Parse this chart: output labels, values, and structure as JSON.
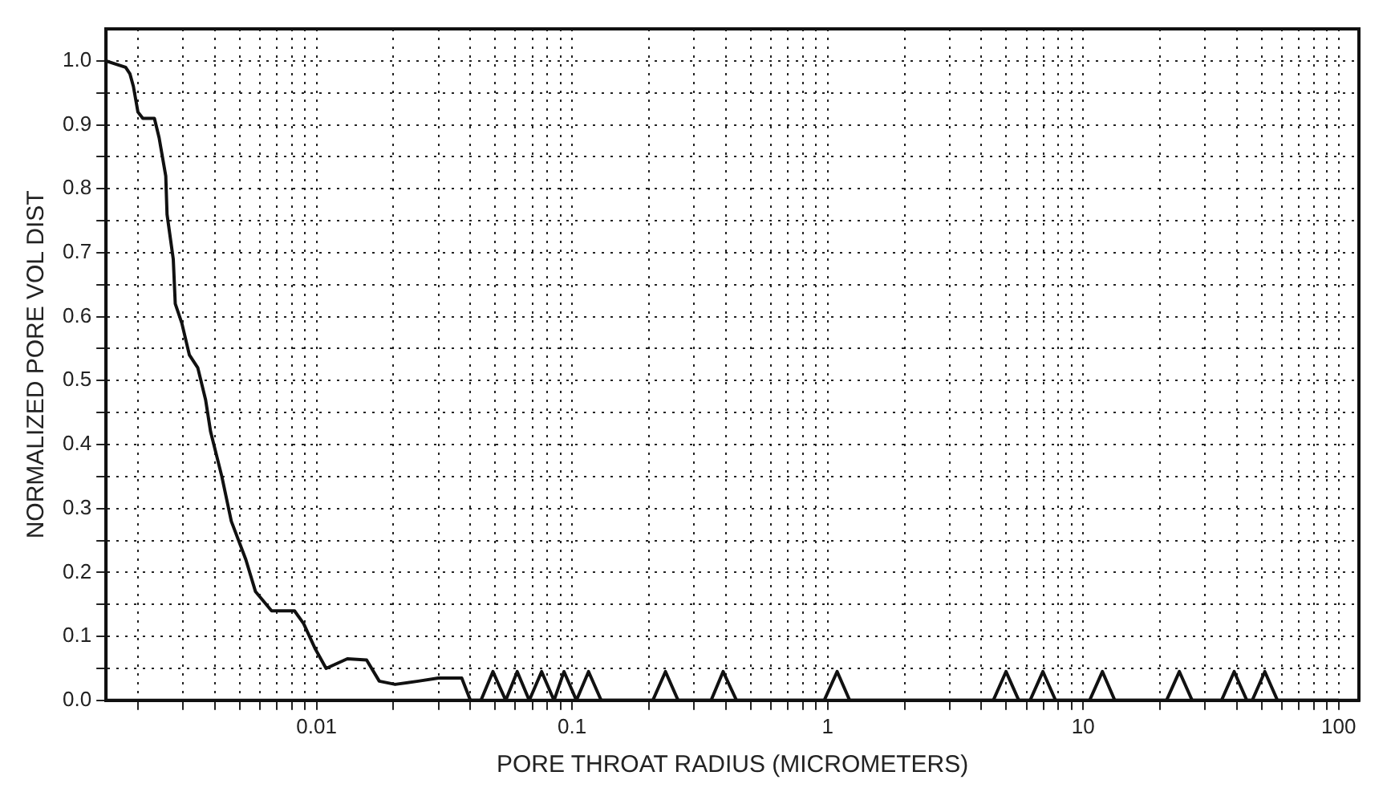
{
  "chart_data": {
    "type": "line",
    "xlabel": "PORE THROAT RADIUS (MICROMETERS)",
    "ylabel": "NORMALIZED PORE VOL DIST",
    "log": "x",
    "grid": true,
    "marker": "none",
    "line_style": "solid",
    "legend": false,
    "xlim": [
      0.0015,
      120
    ],
    "ylim": [
      0,
      1.05
    ],
    "xticks": [
      {
        "value": 0.002,
        "label": null
      },
      {
        "value": 0.003,
        "label": null
      },
      {
        "value": 0.004,
        "label": null
      },
      {
        "value": 0.005,
        "label": null
      },
      {
        "value": 0.006,
        "label": null
      },
      {
        "value": 0.007,
        "label": null
      },
      {
        "value": 0.008,
        "label": null
      },
      {
        "value": 0.009,
        "label": null
      },
      0.01,
      {
        "value": 0.02,
        "label": null
      },
      {
        "value": 0.03,
        "label": null
      },
      {
        "value": 0.04,
        "label": null
      },
      {
        "value": 0.05,
        "label": null
      },
      {
        "value": 0.06,
        "label": null
      },
      {
        "value": 0.07,
        "label": null
      },
      {
        "value": 0.08,
        "label": null
      },
      {
        "value": 0.09,
        "label": null
      },
      0.1,
      {
        "value": 0.2,
        "label": null
      },
      {
        "value": 0.3,
        "label": null
      },
      {
        "value": 0.4,
        "label": null
      },
      {
        "value": 0.5,
        "label": null
      },
      {
        "value": 0.6,
        "label": null
      },
      {
        "value": 0.7,
        "label": null
      },
      {
        "value": 0.8,
        "label": null
      },
      {
        "value": 0.9,
        "label": null
      },
      1,
      {
        "value": 2,
        "label": null
      },
      {
        "value": 3,
        "label": null
      },
      {
        "value": 4,
        "label": null
      },
      {
        "value": 5,
        "label": null
      },
      {
        "value": 6,
        "label": null
      },
      {
        "value": 7,
        "label": null
      },
      {
        "value": 8,
        "label": null
      },
      {
        "value": 9,
        "label": null
      },
      10,
      {
        "value": 20,
        "label": null
      },
      {
        "value": 30,
        "label": null
      },
      {
        "value": 40,
        "label": null
      },
      {
        "value": 50,
        "label": null
      },
      {
        "value": 60,
        "label": null
      },
      {
        "value": 70,
        "label": null
      },
      {
        "value": 80,
        "label": null
      },
      {
        "value": 90,
        "label": null
      },
      100
    ],
    "yticks": [
      {
        "value": 0,
        "label": "0.0"
      },
      {
        "value": 0.05,
        "label": null
      },
      {
        "value": 0.1,
        "label": "0.1"
      },
      {
        "value": 0.15,
        "label": null
      },
      {
        "value": 0.2,
        "label": "0.2"
      },
      {
        "value": 0.25,
        "label": null
      },
      {
        "value": 0.3,
        "label": "0.3"
      },
      {
        "value": 0.35,
        "label": null
      },
      {
        "value": 0.4,
        "label": "0.4"
      },
      {
        "value": 0.45,
        "label": null
      },
      {
        "value": 0.5,
        "label": "0.5"
      },
      {
        "value": 0.55,
        "label": null
      },
      {
        "value": 0.6,
        "label": "0.6"
      },
      {
        "value": 0.65,
        "label": null
      },
      {
        "value": 0.7,
        "label": "0.7"
      },
      {
        "value": 0.75,
        "label": null
      },
      {
        "value": 0.8,
        "label": "0.8"
      },
      {
        "value": 0.85,
        "label": null
      },
      {
        "value": 0.9,
        "label": "0.9"
      },
      {
        "value": 0.95,
        "label": null
      },
      {
        "value": 1,
        "label": "1.0"
      }
    ],
    "series": [
      {
        "color": "#111111",
        "x": [
          0.0015,
          0.00179,
          0.00186,
          0.00192,
          0.002,
          0.00209,
          0.00232,
          0.00242,
          0.00257,
          0.0026,
          0.00275,
          0.0028,
          0.00297,
          0.00318,
          0.00343,
          0.00368,
          0.00385,
          0.00426,
          0.00464,
          0.00529,
          0.00577,
          0.00667,
          0.0082,
          0.0089,
          0.0099,
          0.0109,
          0.0132,
          0.0157,
          0.0176,
          0.0203,
          0.025,
          0.03,
          0.037,
          0.04,
          0.044,
          0.049,
          0.055,
          0.061,
          0.068,
          0.076,
          0.085,
          0.093,
          0.104,
          0.116,
          0.13,
          0.207,
          0.232,
          0.26,
          0.35,
          0.39,
          0.44,
          0.97,
          1.09,
          1.22,
          4.45,
          4.99,
          5.6,
          6.2,
          6.96,
          7.8,
          10.6,
          11.9,
          13.3,
          21.2,
          23.8,
          26.7,
          34.8,
          39,
          43.7,
          45.9,
          51.4,
          57.6,
          100
        ],
        "values": [
          1.0,
          0.99,
          0.98,
          0.96,
          0.92,
          0.91,
          0.91,
          0.88,
          0.82,
          0.76,
          0.69,
          0.62,
          0.59,
          0.54,
          0.52,
          0.47,
          0.42,
          0.35,
          0.28,
          0.22,
          0.17,
          0.14,
          0.14,
          0.12,
          0.08,
          0.05,
          0.065,
          0.063,
          0.03,
          0.025,
          0.03,
          0.035,
          0.035,
          0,
          0,
          0.045,
          0,
          0.045,
          0,
          0.045,
          0,
          0.045,
          0,
          0.045,
          0,
          0,
          0.045,
          0,
          0,
          0.045,
          0,
          0,
          0.045,
          0,
          0,
          0.045,
          0,
          0,
          0.045,
          0,
          0,
          0.045,
          0,
          0,
          0.045,
          0,
          0,
          0.045,
          0,
          0,
          0.045,
          0,
          0
        ]
      }
    ]
  }
}
